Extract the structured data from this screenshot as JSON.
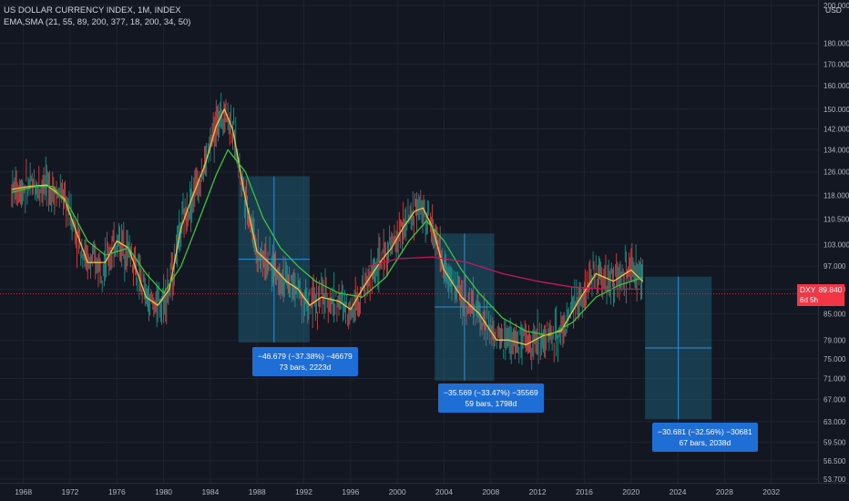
{
  "legend": {
    "title": "US DOLLAR CURRENCY INDEX, 1M, INDEX",
    "indicators": "EMA,SMA (21, 55, 89, 200, 377, 18, 200, 34, 50)"
  },
  "price_axis": {
    "currency": "USD",
    "current_symbol": "DXY",
    "current_price": "89.840",
    "countdown": "6d 5h"
  },
  "measurements": [
    {
      "change": "−46.679 (−37.38%) −46679",
      "duration": "73 bars, 2223d"
    },
    {
      "change": "−35.569 (−33.47%) −35569",
      "duration": "59 bars, 1798d"
    },
    {
      "change": "−30.681 (−32.56%) −30681",
      "duration": "67 bars, 2038d"
    }
  ],
  "colors": {
    "background": "#131722",
    "price_up": "#26a69a",
    "price_down": "#ef5350",
    "ema_fast": "#f5c242",
    "ema_slow": "#3cc43c",
    "ma_long": "#c2185b",
    "measure_box": "#1f6e8c",
    "label": "#1e6ed6",
    "current_price": "#f23645"
  },
  "chart_data": {
    "type": "line",
    "title": "US DOLLAR CURRENCY INDEX, 1M, INDEX",
    "y_scale": "log",
    "ylim": [
      53.7,
      200
    ],
    "xlim": [
      1966,
      2036
    ],
    "y_ticks": [
      "200.000",
      "180.000",
      "170.000",
      "160.000",
      "150.000",
      "142.000",
      "134.000",
      "126.000",
      "118.000",
      "110.500",
      "103.000",
      "97.000",
      "91.000",
      "85.000",
      "79.000",
      "75.000",
      "71.000",
      "67.000",
      "63.000",
      "59.500",
      "56.500",
      "53.700"
    ],
    "x_ticks": [
      "1968",
      "1972",
      "1976",
      "1980",
      "1984",
      "1988",
      "1992",
      "1996",
      "2000",
      "2004",
      "2008",
      "2012",
      "2016",
      "2020",
      "2024",
      "2028",
      "2032"
    ],
    "grid": true,
    "current_price": 89.84,
    "series": [
      {
        "values": [
          [
            1967.0,
            120
          ],
          [
            1968.5,
            121
          ],
          [
            1970,
            121.5
          ],
          [
            1971.5,
            117
          ],
          [
            1972.5,
            107
          ],
          [
            1973.5,
            98
          ],
          [
            1975,
            98
          ],
          [
            1976,
            104
          ],
          [
            1977,
            102
          ],
          [
            1978.5,
            89
          ],
          [
            1979.5,
            87
          ],
          [
            1980.5,
            91
          ],
          [
            1981.5,
            108
          ],
          [
            1982.5,
            118
          ],
          [
            1983.5,
            128
          ],
          [
            1984.5,
            143
          ],
          [
            1985.2,
            150
          ],
          [
            1985.9,
            142
          ],
          [
            1987,
            117
          ],
          [
            1988,
            101
          ],
          [
            1989,
            98
          ],
          [
            1990.5,
            93
          ],
          [
            1991.5,
            91
          ],
          [
            1992.5,
            87
          ],
          [
            1993.5,
            89
          ],
          [
            1995,
            88
          ],
          [
            1996,
            86
          ],
          [
            1997,
            91
          ],
          [
            1998.5,
            98
          ],
          [
            1999.5,
            102
          ],
          [
            2000.5,
            108
          ],
          [
            2001.5,
            113
          ],
          [
            2002.2,
            114
          ],
          [
            2003,
            108
          ],
          [
            2004,
            96
          ],
          [
            2005.5,
            89
          ],
          [
            2007,
            85
          ],
          [
            2008.5,
            79
          ],
          [
            2009.5,
            79
          ],
          [
            2011,
            78
          ],
          [
            2012.5,
            80
          ],
          [
            2014,
            81
          ],
          [
            2015.5,
            88
          ],
          [
            2017,
            95
          ],
          [
            2018.5,
            93
          ],
          [
            2020,
            96
          ],
          [
            2021,
            93
          ]
        ]
      },
      {
        "values": [
          [
            1967.0,
            119
          ],
          [
            1969,
            121
          ],
          [
            1970.5,
            121
          ],
          [
            1972,
            114
          ],
          [
            1973.5,
            104
          ],
          [
            1975,
            100
          ],
          [
            1977,
            102
          ],
          [
            1978.5,
            95
          ],
          [
            1980,
            90
          ],
          [
            1981.5,
            97
          ],
          [
            1983,
            110
          ],
          [
            1984.5,
            125
          ],
          [
            1985.5,
            134
          ],
          [
            1987,
            126
          ],
          [
            1988.5,
            111
          ],
          [
            1990,
            102
          ],
          [
            1991.5,
            97
          ],
          [
            1993,
            93
          ],
          [
            1995,
            90
          ],
          [
            1997,
            89
          ],
          [
            1999,
            94
          ],
          [
            2001,
            104
          ],
          [
            2002.5,
            110
          ],
          [
            2004,
            104
          ],
          [
            2005.5,
            96
          ],
          [
            2007,
            90
          ],
          [
            2009,
            84
          ],
          [
            2011,
            81
          ],
          [
            2013,
            80
          ],
          [
            2015,
            83
          ],
          [
            2017,
            89
          ],
          [
            2019,
            92
          ],
          [
            2021,
            94
          ]
        ]
      },
      {
        "values": [
          [
            1997.5,
            97
          ],
          [
            2000,
            99
          ],
          [
            2003,
            99.5
          ],
          [
            2006,
            98
          ],
          [
            2009,
            95
          ],
          [
            2012,
            93
          ],
          [
            2015,
            91.5
          ],
          [
            2018,
            91
          ],
          [
            2021,
            91
          ]
        ]
      }
    ],
    "measurements": [
      {
        "from": {
          "year": 1986.4,
          "price": 124.5
        },
        "to": {
          "year": 1992.5,
          "price": 78.5
        },
        "change": -46.679,
        "percent": -37.38,
        "bars": 73,
        "days": 2223
      },
      {
        "from": {
          "year": 2003.2,
          "price": 106.2
        },
        "to": {
          "year": 2008.3,
          "price": 70.6
        },
        "change": -35.569,
        "percent": -33.47,
        "bars": 59,
        "days": 1798
      },
      {
        "from": {
          "year": 2021.2,
          "price": 94.2
        },
        "to": {
          "year": 2026.9,
          "price": 63.4
        },
        "change": -30.681,
        "percent": -32.56,
        "bars": 67,
        "days": 2038
      }
    ]
  }
}
